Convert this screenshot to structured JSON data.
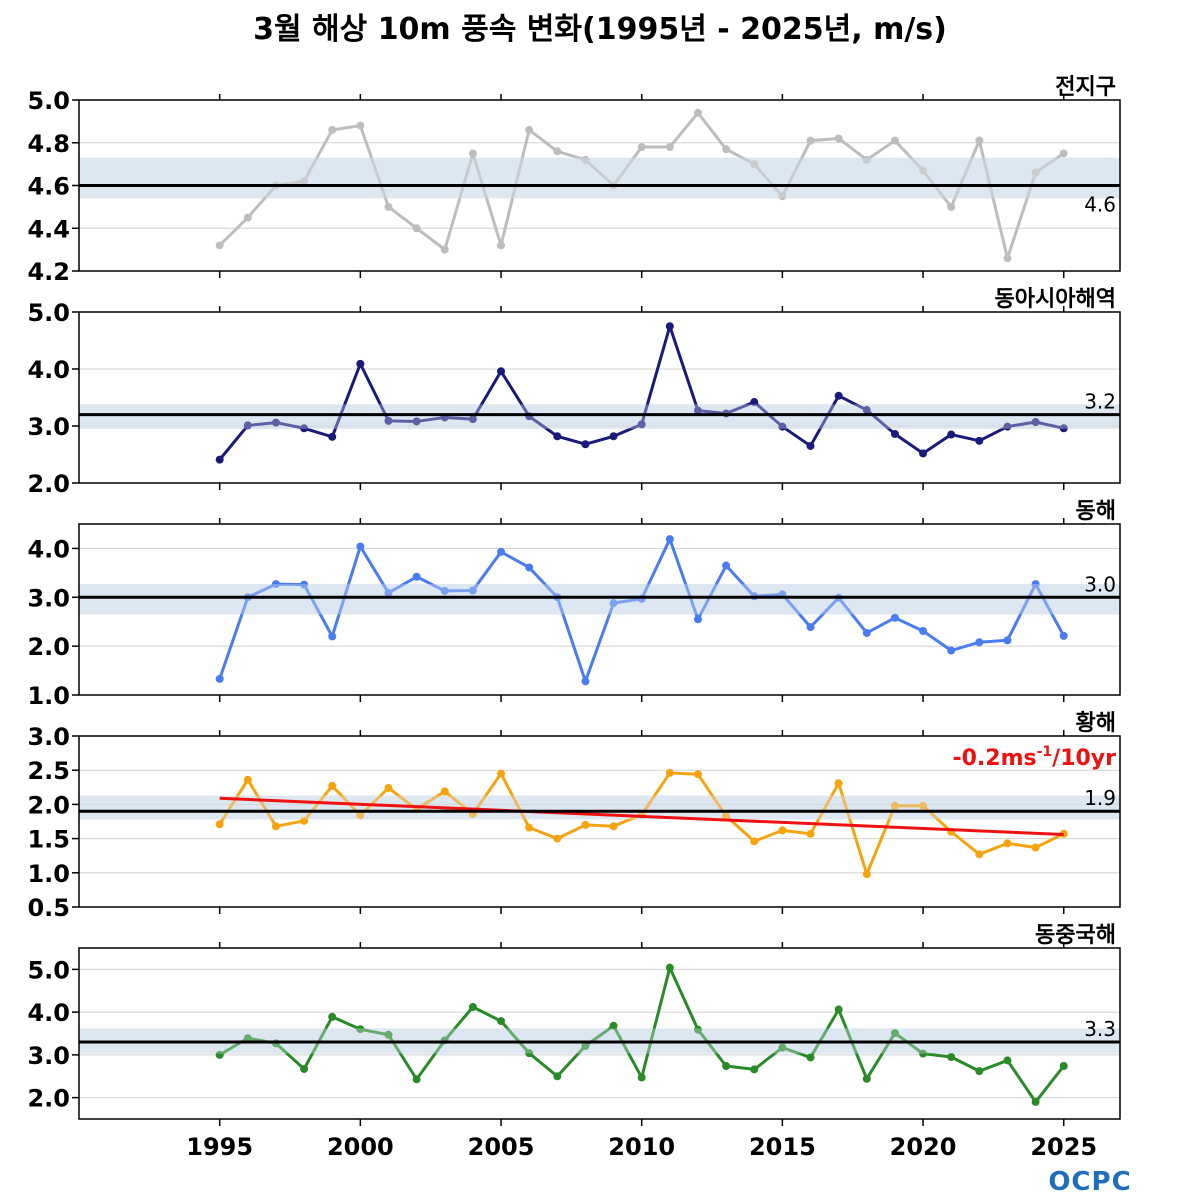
{
  "title": "3월 해상 10m 풍속 변화(1995년 - 2025년, m/s)",
  "logo": "OCPC",
  "chart_data": {
    "type": "line",
    "x": [
      1995,
      1996,
      1997,
      1998,
      1999,
      2000,
      2001,
      2002,
      2003,
      2004,
      2005,
      2006,
      2007,
      2008,
      2009,
      2010,
      2011,
      2012,
      2013,
      2014,
      2015,
      2016,
      2017,
      2018,
      2019,
      2020,
      2021,
      2022,
      2023,
      2024,
      2025
    ],
    "xlim": [
      1990,
      2027
    ],
    "xticks": [
      1995,
      2000,
      2005,
      2010,
      2015,
      2020,
      2025
    ],
    "panels": [
      {
        "name": "전지구",
        "color": "#bdbdbd",
        "ylim": [
          4.2,
          5.0
        ],
        "yticks": [
          "4.2",
          "4.4",
          "4.6",
          "4.8",
          "5.0"
        ],
        "mean": 4.6,
        "mean_label": "4.6",
        "band": [
          4.54,
          4.73
        ],
        "values": [
          4.32,
          4.45,
          4.6,
          4.62,
          4.86,
          4.88,
          4.5,
          4.4,
          4.3,
          4.75,
          4.32,
          4.86,
          4.76,
          4.72,
          4.6,
          4.78,
          4.78,
          4.94,
          4.77,
          4.7,
          4.55,
          4.81,
          4.82,
          4.72,
          4.81,
          4.67,
          4.5,
          4.81,
          4.26,
          4.66,
          4.75
        ]
      },
      {
        "name": "동아시아해역",
        "color": "#1a1a7a",
        "ylim": [
          2.0,
          5.0
        ],
        "yticks": [
          "2.0",
          "3.0",
          "4.0",
          "5.0"
        ],
        "mean": 3.2,
        "mean_label": "3.2",
        "band": [
          2.95,
          3.38
        ],
        "values": [
          2.41,
          3.01,
          3.06,
          2.96,
          2.81,
          4.09,
          3.09,
          3.08,
          3.15,
          3.12,
          3.96,
          3.17,
          2.82,
          2.68,
          2.82,
          3.03,
          4.75,
          3.27,
          3.22,
          3.42,
          2.99,
          2.65,
          3.53,
          3.28,
          2.86,
          2.52,
          2.85,
          2.74,
          2.99,
          3.07,
          2.96
        ]
      },
      {
        "name": "동해",
        "color": "#4b7bf0",
        "ylim": [
          1.0,
          4.5
        ],
        "yticks": [
          "1.0",
          "2.0",
          "3.0",
          "4.0"
        ],
        "mean": 3.0,
        "mean_label": "3.0",
        "band": [
          2.65,
          3.27
        ],
        "values": [
          1.33,
          3.0,
          3.27,
          3.26,
          2.2,
          4.04,
          3.09,
          3.42,
          3.13,
          3.14,
          3.93,
          3.61,
          3.0,
          1.28,
          2.88,
          2.97,
          4.19,
          2.55,
          3.65,
          3.02,
          3.06,
          2.39,
          2.99,
          2.27,
          2.58,
          2.31,
          1.91,
          2.08,
          2.12,
          3.27,
          2.21
        ]
      },
      {
        "name": "황해",
        "color": "#f5a410",
        "ylim": [
          0.5,
          3.0
        ],
        "yticks": [
          "0.5",
          "1.0",
          "1.5",
          "2.0",
          "2.5",
          "3.0"
        ],
        "mean": 1.9,
        "mean_label": "1.9",
        "band": [
          1.78,
          2.13
        ],
        "values": [
          1.71,
          2.36,
          1.68,
          1.76,
          2.27,
          1.84,
          2.24,
          1.93,
          2.19,
          1.86,
          2.45,
          1.66,
          1.5,
          1.7,
          1.68,
          1.85,
          2.46,
          2.44,
          1.83,
          1.46,
          1.62,
          1.57,
          2.31,
          0.98,
          1.98,
          1.98,
          1.6,
          1.27,
          1.43,
          1.37,
          1.57
        ],
        "trend": {
          "start": 2.09,
          "end": 1.56,
          "color": "#ee1111",
          "label_main": "-0.2ms",
          "label_sup": "-1",
          "label_tail": "/10yr"
        }
      },
      {
        "name": "동중국해",
        "color": "#2a8a2a",
        "ylim": [
          1.5,
          5.5
        ],
        "yticks": [
          "2.0",
          "3.0",
          "4.0",
          "5.0"
        ],
        "mean": 3.3,
        "mean_label": "3.3",
        "band": [
          3.03,
          3.62
        ],
        "values": [
          3.0,
          3.39,
          3.27,
          2.67,
          3.89,
          3.6,
          3.47,
          2.43,
          3.34,
          4.12,
          3.79,
          3.04,
          2.5,
          3.21,
          3.68,
          2.47,
          5.04,
          3.59,
          2.74,
          2.66,
          3.17,
          2.94,
          4.06,
          2.44,
          3.51,
          3.03,
          2.95,
          2.62,
          2.87,
          1.9,
          2.74
        ]
      }
    ]
  }
}
